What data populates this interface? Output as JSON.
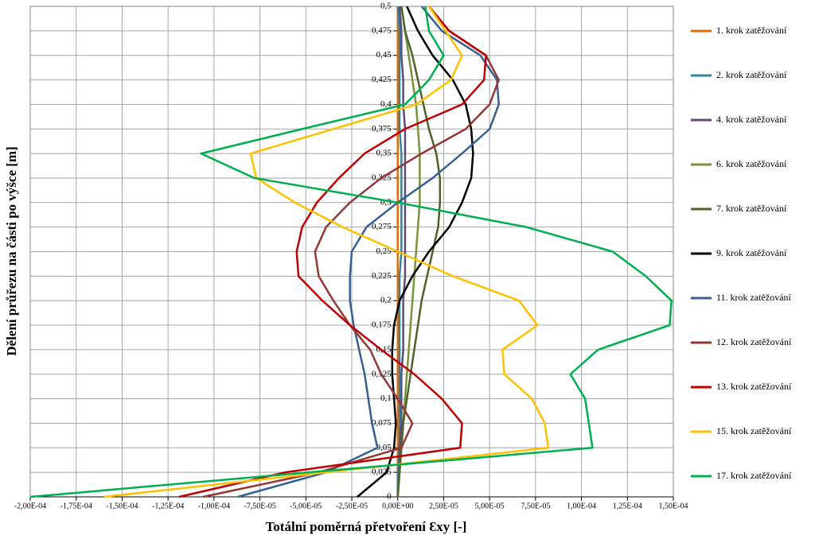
{
  "chart_data": {
    "type": "line",
    "x_label": "Totální poměrná přetvoření Ɛxy [-]",
    "y_label": "Dělení průřezu na části po výšce [m]",
    "xlim": [
      -0.0002,
      0.00015
    ],
    "ylim": [
      0,
      0.5
    ],
    "xticks": [
      {
        "value": -0.0002,
        "label": "-2,00E-04"
      },
      {
        "value": -0.000175,
        "label": "-1,75E-04"
      },
      {
        "value": -0.00015,
        "label": "-1,50E-04"
      },
      {
        "value": -0.000125,
        "label": "-1,25E-04"
      },
      {
        "value": -0.0001,
        "label": "-1,00E-04"
      },
      {
        "value": -7.5e-05,
        "label": "-7,50E-05"
      },
      {
        "value": -5e-05,
        "label": "-5,00E-05"
      },
      {
        "value": -2.5e-05,
        "label": "-2,50E-05"
      },
      {
        "value": 0,
        "label": "0,00E+00"
      },
      {
        "value": 2.5e-05,
        "label": "2,50E-05"
      },
      {
        "value": 5e-05,
        "label": "5,00E-05"
      },
      {
        "value": 7.5e-05,
        "label": "7,50E-05"
      },
      {
        "value": 0.0001,
        "label": "1,00E-04"
      },
      {
        "value": 0.000125,
        "label": "1,25E-04"
      },
      {
        "value": 0.00015,
        "label": "1,50E-04"
      }
    ],
    "yticks": [
      0,
      {
        "value": 0.025,
        "label": "0,025"
      },
      {
        "value": 0.05,
        "label": "0,05"
      },
      {
        "value": 0.075,
        "label": "0,075"
      },
      {
        "value": 0.1,
        "label": "0,1"
      },
      {
        "value": 0.125,
        "label": "0,125"
      },
      {
        "value": 0.15,
        "label": "0,15"
      },
      {
        "value": 0.175,
        "label": "0,175"
      },
      {
        "value": 0.2,
        "label": "0,2"
      },
      {
        "value": 0.225,
        "label": "0,225"
      },
      {
        "value": 0.25,
        "label": "0,25"
      },
      {
        "value": 0.275,
        "label": "0,275"
      },
      {
        "value": 0.3,
        "label": "0,3"
      },
      {
        "value": 0.325,
        "label": "0,325"
      },
      {
        "value": 0.35,
        "label": "0,35"
      },
      {
        "value": 0.375,
        "label": "0,375"
      },
      {
        "value": 0.4,
        "label": "0,4"
      },
      {
        "value": 0.425,
        "label": "0,425"
      },
      {
        "value": 0.45,
        "label": "0,45"
      },
      {
        "value": 0.475,
        "label": "0,475"
      },
      {
        "value": 0.5,
        "label": "0,5"
      }
    ],
    "grid": true,
    "legend": "right",
    "y": [
      0,
      0.025,
      0.05,
      0.075,
      0.1,
      0.125,
      0.15,
      0.175,
      0.2,
      0.225,
      0.25,
      0.275,
      0.3,
      0.325,
      0.35,
      0.375,
      0.4,
      0.425,
      0.45,
      0.475,
      0.5
    ],
    "series": [
      {
        "name": "1. krok zatěžování",
        "color": "#e36c09",
        "values": [
          0,
          0,
          0,
          0,
          0,
          0,
          0,
          0,
          0,
          0,
          0,
          0,
          0,
          0,
          0,
          0,
          0,
          0,
          0,
          0,
          0
        ]
      },
      {
        "name": "2. krok zatěžování",
        "color": "#31859c",
        "values": [
          0,
          0,
          1e-06,
          1e-06,
          1e-06,
          1e-06,
          1e-06,
          1e-06,
          1e-06,
          1e-06,
          2e-06,
          2e-06,
          2e-06,
          2e-06,
          2e-06,
          1e-06,
          1e-06,
          1e-06,
          1e-06,
          1e-06,
          0
        ]
      },
      {
        "name": "4. krok zatěžování",
        "color": "#604a7b",
        "values": [
          0,
          1e-06,
          1e-06,
          2e-06,
          2e-06,
          2e-06,
          3e-06,
          3e-06,
          3e-06,
          4e-06,
          4e-06,
          4e-06,
          4e-06,
          4e-06,
          4e-06,
          4e-06,
          3e-06,
          3e-06,
          2e-06,
          2e-06,
          1e-06
        ]
      },
      {
        "name": "6. krok zatěžování",
        "color": "#77933c",
        "values": [
          0,
          1e-06,
          2e-06,
          3e-06,
          4e-06,
          5e-06,
          6e-06,
          7e-06,
          8e-06,
          9e-06,
          1e-05,
          1.1e-05,
          1.2e-05,
          1.2e-05,
          1.2e-05,
          1.1e-05,
          1e-05,
          8e-06,
          6e-06,
          4e-06,
          2e-06
        ]
      },
      {
        "name": "7. krok zatěžování",
        "color": "#4f6228",
        "values": [
          0,
          1e-06,
          2e-06,
          3e-06,
          5e-06,
          7e-06,
          9e-06,
          1.1e-05,
          1.3e-05,
          1.6e-05,
          1.9e-05,
          2.2e-05,
          2.3e-05,
          2.3e-05,
          2.1e-05,
          1.7e-05,
          1.4e-05,
          1.1e-05,
          8e-06,
          4e-06,
          2e-06
        ]
      },
      {
        "name": "9. krok zatěžování",
        "color": "#000000",
        "values": [
          -2.2e-05,
          -6e-06,
          -2e-06,
          -1e-06,
          -2e-06,
          -3e-06,
          -3e-06,
          -2e-06,
          1e-06,
          8e-06,
          1.7e-05,
          2.8e-05,
          3.5e-05,
          4e-05,
          4.1e-05,
          4e-05,
          3.7e-05,
          3e-05,
          1.9e-05,
          1.1e-05,
          5e-06
        ]
      },
      {
        "name": "11. krok zatěžování",
        "color": "#376092",
        "values": [
          -8.7e-05,
          -3.9e-05,
          -1.1e-05,
          -1.4e-05,
          -1.6e-05,
          -1.8e-05,
          -2.1e-05,
          -2.4e-05,
          -2.6e-05,
          -2.6e-05,
          -2.5e-05,
          -1.7e-05,
          0,
          1.9e-05,
          3.5e-05,
          5e-05,
          5.5e-05,
          5.4e-05,
          4.5e-05,
          2.4e-05,
          1.3e-05
        ]
      },
      {
        "name": "12. krok zatěžování",
        "color": "#953735",
        "values": [
          -0.000106,
          -4.3e-05,
          2e-06,
          8e-06,
          0,
          -9e-06,
          -1.5e-05,
          -2.6e-05,
          -3.5e-05,
          -4.3e-05,
          -4.5e-05,
          -3.9e-05,
          -2.6e-05,
          -9e-06,
          1.3e-05,
          3.7e-05,
          5e-05,
          5.5e-05,
          4.8e-05,
          2.8e-05,
          1.7e-05
        ]
      },
      {
        "name": "13. krok zatěžování",
        "color": "#c00000",
        "values": [
          -0.000119,
          -6.1e-05,
          3.4e-05,
          3.5e-05,
          2.4e-05,
          9e-06,
          -9e-06,
          -2.6e-05,
          -4.1e-05,
          -5.4e-05,
          -5.5e-05,
          -5.2e-05,
          -4.4e-05,
          -3.2e-05,
          -1.8e-05,
          4e-06,
          3.5e-05,
          4.7e-05,
          4.8e-05,
          2.8e-05,
          1.7e-05
        ]
      },
      {
        "name": "15. krok zatěžování",
        "color": "#ffc000",
        "values": [
          -0.00016,
          -3.9e-05,
          8.2e-05,
          8e-05,
          7.3e-05,
          5.8e-05,
          5.7e-05,
          7.6e-05,
          6.6e-05,
          3e-05,
          0,
          -3e-05,
          -5.6e-05,
          -7.7e-05,
          -8e-05,
          -3.5e-05,
          1e-05,
          2.9e-05,
          3.5e-05,
          2.6e-05,
          1.7e-05
        ]
      },
      {
        "name": "17. krok zatěžování",
        "color": "#00b050",
        "values": [
          -0.0002,
          -4.8e-05,
          0.000106,
          0.000104,
          0.000102,
          9.4e-05,
          0.000109,
          0.000148,
          0.000149,
          0.000135,
          0.000117,
          7e-05,
          0,
          -7.8e-05,
          -0.000107,
          -5.2e-05,
          4e-06,
          1.7e-05,
          2.5e-05,
          1.7e-05,
          1.5e-05
        ]
      }
    ]
  }
}
